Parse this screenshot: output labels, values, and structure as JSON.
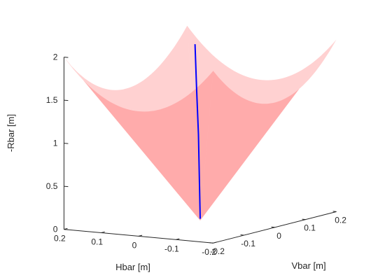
{
  "chart_data": {
    "type": "surface3d",
    "title": "",
    "xlabel": "Hbar [m]",
    "ylabel": "Vbar [m]",
    "zlabel": "-Rbar [m]",
    "xlim": [
      -0.2,
      0.2
    ],
    "ylim": [
      -0.2,
      0.2
    ],
    "zlim": [
      0,
      2
    ],
    "x_ticks": [
      "-0.2",
      "-0.1",
      "0",
      "0.1",
      "0.2"
    ],
    "y_ticks": [
      "-0.2",
      "-0.1",
      "0",
      "0.1",
      "0.2"
    ],
    "z_ticks": [
      "0",
      "0.5",
      "1",
      "1.5",
      "2"
    ],
    "grid": false,
    "surfaces": [
      {
        "shape": "inverted square pyramid (viewing cone)",
        "color": "#ff0000",
        "opacity": 0.18,
        "apex": [
          0,
          0,
          0
        ],
        "half_width_at_top": 0.2,
        "top_z": 2,
        "top_edge_dip": 0.55
      }
    ],
    "line": {
      "color": "#0000ff",
      "points": [
        [
          0,
          0,
          0.02
        ],
        [
          0.003,
          -0.002,
          1.0
        ],
        [
          0.006,
          -0.004,
          1.5
        ],
        [
          0.009,
          -0.006,
          2.05
        ]
      ]
    }
  }
}
